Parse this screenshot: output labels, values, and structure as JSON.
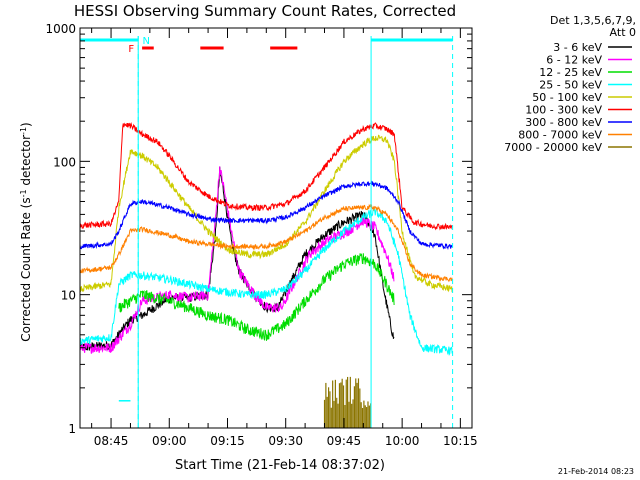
{
  "chart_data": {
    "type": "line",
    "title": "HESSI Observing Summary Count Rates, Corrected",
    "xlabel": "Start Time (21-Feb-14 08:37:02)",
    "ylabel_main": "Corrected Count Rate (s",
    "ylabel_sup1": "-1",
    "ylabel_mid": " detector",
    "ylabel_sup2": "-1",
    "ylabel_end": ")",
    "yscale": "log",
    "ylim": [
      1,
      1000
    ],
    "xlim": [
      "08:37",
      "10:18"
    ],
    "x_ticks": [
      "08:45",
      "09:00",
      "09:15",
      "09:30",
      "09:45",
      "10:00",
      "10:15"
    ],
    "y_ticks": [
      "1",
      "10",
      "100",
      "1000"
    ],
    "grid": false,
    "legend_header": [
      "Det 1,3,5,6,7,9,",
      "Att 0"
    ],
    "legend_position": "right",
    "footer_date": "21-Feb-2014 08:23",
    "flag_labels": {
      "flare": "F",
      "night": "N"
    },
    "night_intervals": [
      [
        "08:37",
        "08:52"
      ],
      [
        "09:52",
        "10:13"
      ]
    ],
    "flare_intervals": [
      [
        "08:53",
        "08:56"
      ],
      [
        "09:08",
        "09:14"
      ],
      [
        "09:26",
        "09:33"
      ]
    ],
    "day_boundaries": [
      "08:52",
      "09:52"
    ],
    "saa_markers": [
      "08:52",
      "10:13"
    ],
    "series": [
      {
        "name": "3 - 6 keV",
        "color": "#000000",
        "noise": 0.08,
        "points": [
          [
            "08:37",
            4.0
          ],
          [
            "08:45",
            4.2
          ],
          [
            "08:48",
            5.5
          ],
          [
            "08:50",
            6.5
          ],
          [
            "08:53",
            7.0
          ],
          [
            "09:00",
            9.5
          ],
          [
            "09:05",
            9.5
          ],
          [
            "09:10",
            10
          ],
          [
            "09:12",
            30
          ],
          [
            "09:13",
            85
          ],
          [
            "09:14",
            60
          ],
          [
            "09:16",
            25
          ],
          [
            "09:18",
            15
          ],
          [
            "09:22",
            10
          ],
          [
            "09:25",
            8
          ],
          [
            "09:28",
            8
          ],
          [
            "09:31",
            12
          ],
          [
            "09:35",
            20
          ],
          [
            "09:40",
            28
          ],
          [
            "09:45",
            35
          ],
          [
            "09:50",
            40
          ],
          [
            "09:53",
            28
          ],
          [
            "09:55",
            12
          ],
          [
            "09:57",
            6
          ],
          [
            "09:58",
            4.5
          ]
        ]
      },
      {
        "name": "6 - 12 keV",
        "color": "#ff00ff",
        "noise": 0.09,
        "points": [
          [
            "08:37",
            4.0
          ],
          [
            "08:45",
            4.0
          ],
          [
            "08:50",
            6
          ],
          [
            "08:53",
            9
          ],
          [
            "09:00",
            10
          ],
          [
            "09:05",
            9.5
          ],
          [
            "09:10",
            10
          ],
          [
            "09:12",
            40
          ],
          [
            "09:13",
            90
          ],
          [
            "09:14",
            65
          ],
          [
            "09:16",
            30
          ],
          [
            "09:18",
            15
          ],
          [
            "09:22",
            10
          ],
          [
            "09:25",
            8
          ],
          [
            "09:29",
            8
          ],
          [
            "09:32",
            12
          ],
          [
            "09:36",
            20
          ],
          [
            "09:41",
            26
          ],
          [
            "09:46",
            30
          ],
          [
            "09:50",
            36
          ],
          [
            "09:53",
            32
          ],
          [
            "09:56",
            20
          ],
          [
            "09:58",
            13
          ]
        ]
      },
      {
        "name": "12 - 25 keV",
        "color": "#00dd00",
        "noise": 0.1,
        "points": [
          [
            "08:47",
            8
          ],
          [
            "08:50",
            9
          ],
          [
            "08:53",
            10
          ],
          [
            "09:00",
            9
          ],
          [
            "09:05",
            8
          ],
          [
            "09:10",
            7
          ],
          [
            "09:15",
            6.5
          ],
          [
            "09:20",
            5.5
          ],
          [
            "09:25",
            5
          ],
          [
            "09:30",
            6
          ],
          [
            "09:35",
            9
          ],
          [
            "09:40",
            13
          ],
          [
            "09:45",
            17
          ],
          [
            "09:50",
            19
          ],
          [
            "09:53",
            17
          ],
          [
            "09:56",
            12
          ],
          [
            "09:58",
            9
          ]
        ]
      },
      {
        "name": "25 - 50 keV",
        "color": "#00ffff",
        "noise": 0.07,
        "points": [
          [
            "08:37",
            4.5
          ],
          [
            "08:45",
            4.8
          ],
          [
            "08:47",
            12
          ],
          [
            "08:50",
            14
          ],
          [
            "08:53",
            14
          ],
          [
            "09:00",
            13
          ],
          [
            "09:05",
            12
          ],
          [
            "09:10",
            11
          ],
          [
            "09:15",
            10.5
          ],
          [
            "09:20",
            10
          ],
          [
            "09:25",
            10
          ],
          [
            "09:30",
            11
          ],
          [
            "09:35",
            15
          ],
          [
            "09:40",
            22
          ],
          [
            "09:45",
            30
          ],
          [
            "09:50",
            38
          ],
          [
            "09:53",
            42
          ],
          [
            "09:56",
            36
          ],
          [
            "09:59",
            20
          ],
          [
            "10:02",
            7
          ],
          [
            "10:05",
            4
          ],
          [
            "10:13",
            3.8
          ]
        ]
      },
      {
        "name": "50 - 100 keV",
        "color": "#cccc00",
        "noise": 0.06,
        "points": [
          [
            "08:37",
            11
          ],
          [
            "08:45",
            12
          ],
          [
            "08:47",
            45
          ],
          [
            "08:50",
            120
          ],
          [
            "08:53",
            110
          ],
          [
            "08:57",
            90
          ],
          [
            "09:00",
            70
          ],
          [
            "09:05",
            45
          ],
          [
            "09:10",
            30
          ],
          [
            "09:15",
            22
          ],
          [
            "09:20",
            20
          ],
          [
            "09:25",
            20
          ],
          [
            "09:30",
            24
          ],
          [
            "09:35",
            35
          ],
          [
            "09:40",
            60
          ],
          [
            "09:45",
            100
          ],
          [
            "09:50",
            135
          ],
          [
            "09:53",
            150
          ],
          [
            "09:56",
            145
          ],
          [
            "09:58",
            100
          ],
          [
            "10:00",
            30
          ],
          [
            "10:03",
            14
          ],
          [
            "10:07",
            12
          ],
          [
            "10:13",
            11
          ]
        ]
      },
      {
        "name": "100 - 300 keV",
        "color": "#ff0000",
        "noise": 0.05,
        "points": [
          [
            "08:37",
            33
          ],
          [
            "08:45",
            34
          ],
          [
            "08:47",
            50
          ],
          [
            "08:48",
            190
          ],
          [
            "08:50",
            185
          ],
          [
            "08:53",
            160
          ],
          [
            "08:57",
            140
          ],
          [
            "09:00",
            110
          ],
          [
            "09:05",
            70
          ],
          [
            "09:10",
            55
          ],
          [
            "09:15",
            47
          ],
          [
            "09:20",
            45
          ],
          [
            "09:25",
            45
          ],
          [
            "09:30",
            48
          ],
          [
            "09:35",
            60
          ],
          [
            "09:40",
            90
          ],
          [
            "09:45",
            140
          ],
          [
            "09:50",
            175
          ],
          [
            "09:53",
            185
          ],
          [
            "09:56",
            175
          ],
          [
            "09:58",
            160
          ],
          [
            "10:00",
            45
          ],
          [
            "10:03",
            35
          ],
          [
            "10:07",
            33
          ],
          [
            "10:13",
            32
          ]
        ]
      },
      {
        "name": "300 - 800 keV",
        "color": "#0000ff",
        "noise": 0.04,
        "points": [
          [
            "08:37",
            23
          ],
          [
            "08:45",
            24
          ],
          [
            "08:47",
            30
          ],
          [
            "08:50",
            48
          ],
          [
            "08:53",
            50
          ],
          [
            "09:00",
            45
          ],
          [
            "09:05",
            40
          ],
          [
            "09:10",
            37
          ],
          [
            "09:15",
            36
          ],
          [
            "09:20",
            36
          ],
          [
            "09:25",
            36
          ],
          [
            "09:30",
            38
          ],
          [
            "09:35",
            45
          ],
          [
            "09:40",
            55
          ],
          [
            "09:45",
            65
          ],
          [
            "09:50",
            68
          ],
          [
            "09:53",
            68
          ],
          [
            "09:56",
            63
          ],
          [
            "09:59",
            50
          ],
          [
            "10:02",
            30
          ],
          [
            "10:05",
            24
          ],
          [
            "10:13",
            23
          ]
        ]
      },
      {
        "name": "800 - 7000 keV",
        "color": "#ff8000",
        "noise": 0.04,
        "points": [
          [
            "08:37",
            15
          ],
          [
            "08:45",
            16
          ],
          [
            "08:47",
            20
          ],
          [
            "08:50",
            30
          ],
          [
            "08:53",
            31
          ],
          [
            "09:00",
            28
          ],
          [
            "09:05",
            25
          ],
          [
            "09:10",
            24
          ],
          [
            "09:15",
            23
          ],
          [
            "09:20",
            23
          ],
          [
            "09:25",
            23
          ],
          [
            "09:30",
            25
          ],
          [
            "09:35",
            30
          ],
          [
            "09:40",
            38
          ],
          [
            "09:45",
            44
          ],
          [
            "09:50",
            45
          ],
          [
            "09:53",
            45
          ],
          [
            "09:56",
            40
          ],
          [
            "09:59",
            30
          ],
          [
            "10:02",
            17
          ],
          [
            "10:05",
            14
          ],
          [
            "10:13",
            13
          ]
        ]
      },
      {
        "name": "7000 - 20000 keV",
        "color": "#8b7500",
        "noise": 0.25,
        "points": [
          [
            "09:40",
            1.8
          ],
          [
            "09:46",
            2.0
          ],
          [
            "09:52",
            1.8
          ]
        ]
      }
    ]
  }
}
